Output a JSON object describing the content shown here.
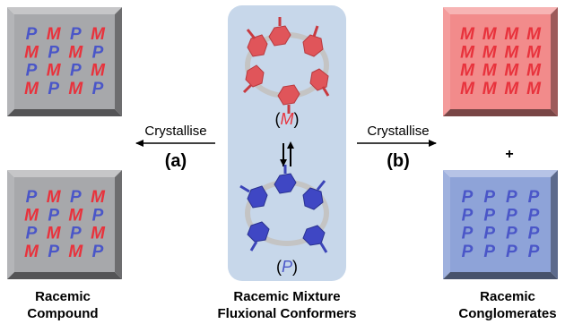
{
  "colors": {
    "M": "#e8323c",
    "P": "#4a56c8",
    "grey_face": "#a7a8ab",
    "red_face": "#f28b8b",
    "blue_face": "#8ea3d8",
    "center_panel": "#c7d7ea"
  },
  "glyphs": {
    "M": "M",
    "P": "P"
  },
  "left": {
    "top_grid": [
      [
        "P",
        "M",
        "P",
        "M"
      ],
      [
        "M",
        "P",
        "M",
        "P"
      ],
      [
        "P",
        "M",
        "P",
        "M"
      ],
      [
        "M",
        "P",
        "M",
        "P"
      ]
    ],
    "bottom_grid": [
      [
        "P",
        "M",
        "P",
        "M"
      ],
      [
        "M",
        "P",
        "M",
        "P"
      ],
      [
        "P",
        "M",
        "P",
        "M"
      ],
      [
        "M",
        "P",
        "M",
        "P"
      ]
    ],
    "label_line1": "Racemic",
    "label_line2": "Compound"
  },
  "right": {
    "top_grid": [
      [
        "M",
        "M",
        "M",
        "M"
      ],
      [
        "M",
        "M",
        "M",
        "M"
      ],
      [
        "M",
        "M",
        "M",
        "M"
      ],
      [
        "M",
        "M",
        "M",
        "M"
      ]
    ],
    "bottom_grid": [
      [
        "P",
        "P",
        "P",
        "P"
      ],
      [
        "P",
        "P",
        "P",
        "P"
      ],
      [
        "P",
        "P",
        "P",
        "P"
      ],
      [
        "P",
        "P",
        "P",
        "P"
      ]
    ],
    "plus": "+",
    "label_line1": "Racemic",
    "label_line2": "Conglomerates"
  },
  "center": {
    "m_label": {
      "open": "(",
      "letter": "M",
      "close": ")"
    },
    "p_label": {
      "open": "(",
      "letter": "P",
      "close": ")"
    },
    "label_line1": "Racemic Mixture",
    "label_line2": "Fluxional Conformers"
  },
  "arrow_left": {
    "text": "Crystallise",
    "tag": "(a)"
  },
  "arrow_right": {
    "text": "Crystallise",
    "tag": "(b)"
  }
}
